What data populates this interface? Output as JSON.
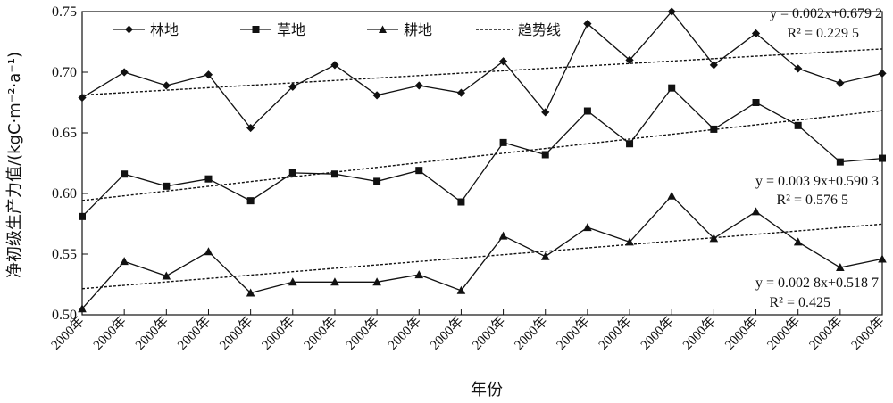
{
  "chart_data": {
    "type": "line",
    "xlabel": "年份",
    "ylabel": "净初级生产力值/(kgC·m⁻²·a⁻¹)",
    "ylim": [
      0.5,
      0.75
    ],
    "yticks": [
      "0.50",
      "0.55",
      "0.60",
      "0.65",
      "0.70",
      "0.75"
    ],
    "categories": [
      "2000年",
      "2000年",
      "2000年",
      "2000年",
      "2000年",
      "2000年",
      "2000年",
      "2000年",
      "2000年",
      "2000年",
      "2000年",
      "2000年",
      "2000年",
      "2000年",
      "2000年",
      "2000年",
      "2000年",
      "2000年",
      "2000年",
      "2000年"
    ],
    "legend_position": "top-left",
    "grid": false,
    "series": [
      {
        "name": "林地",
        "marker": "diamond",
        "values": [
          0.679,
          0.7,
          0.689,
          0.698,
          0.654,
          0.688,
          0.706,
          0.681,
          0.689,
          0.683,
          0.709,
          0.667,
          0.74,
          0.71,
          0.75,
          0.706,
          0.732,
          0.703,
          0.691,
          0.699
        ],
        "trend": {
          "intercept": 0.6792,
          "slope": 0.002
        },
        "equation": "y = 0.002x+0.679 2",
        "r2": "R² = 0.229 5"
      },
      {
        "name": "草地",
        "marker": "square",
        "values": [
          0.581,
          0.616,
          0.606,
          0.612,
          0.594,
          0.617,
          0.616,
          0.61,
          0.619,
          0.593,
          0.642,
          0.632,
          0.668,
          0.641,
          0.687,
          0.653,
          0.675,
          0.656,
          0.626,
          0.629
        ],
        "trend": {
          "intercept": 0.5903,
          "slope": 0.0039
        },
        "equation": "y = 0.003 9x+0.590 3",
        "r2": "R² = 0.576 5"
      },
      {
        "name": "耕地",
        "marker": "triangle",
        "values": [
          0.505,
          0.544,
          0.532,
          0.552,
          0.518,
          0.527,
          0.527,
          0.527,
          0.533,
          0.52,
          0.565,
          0.548,
          0.572,
          0.56,
          0.598,
          0.563,
          0.585,
          0.56,
          0.539,
          0.546
        ],
        "trend": {
          "intercept": 0.5187,
          "slope": 0.0028
        },
        "equation": "y = 0.002 8x+0.518 7",
        "r2": "R² = 0.425"
      }
    ],
    "trend_label": "趋势线"
  }
}
